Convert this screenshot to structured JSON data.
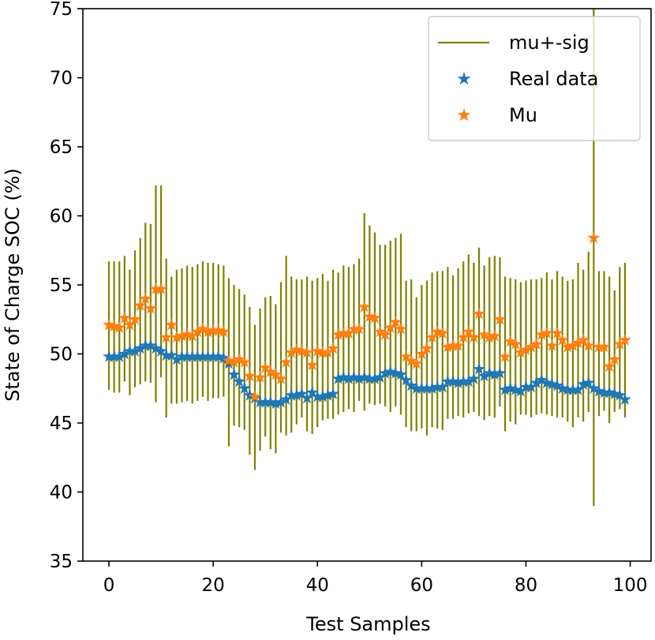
{
  "chart_data": {
    "type": "scatter",
    "title": "",
    "xlabel": "Test Samples",
    "ylabel": "State of Charge SOC (%)",
    "xlim": [
      -5,
      104
    ],
    "ylim": [
      35,
      75
    ],
    "xticks": [
      0,
      20,
      40,
      60,
      80,
      100
    ],
    "yticks": [
      35,
      40,
      45,
      50,
      55,
      60,
      65,
      70,
      75
    ],
    "grid": false,
    "legend_position": "top-right",
    "x": [
      0,
      1,
      2,
      3,
      4,
      5,
      6,
      7,
      8,
      9,
      10,
      11,
      12,
      13,
      14,
      15,
      16,
      17,
      18,
      19,
      20,
      21,
      22,
      23,
      24,
      25,
      26,
      27,
      28,
      29,
      30,
      31,
      32,
      33,
      34,
      35,
      36,
      37,
      38,
      39,
      40,
      41,
      42,
      43,
      44,
      45,
      46,
      47,
      48,
      49,
      50,
      51,
      52,
      53,
      54,
      55,
      56,
      57,
      58,
      59,
      60,
      61,
      62,
      63,
      64,
      65,
      66,
      67,
      68,
      69,
      70,
      71,
      72,
      73,
      74,
      75,
      76,
      77,
      78,
      79,
      80,
      81,
      82,
      83,
      84,
      85,
      86,
      87,
      88,
      89,
      90,
      91,
      92,
      93,
      94,
      95,
      96,
      97,
      98,
      99
    ],
    "series": [
      {
        "name": "mu+-sig",
        "kind": "errorbar",
        "color": "#808000",
        "low": [
          47.4,
          47.2,
          47.2,
          48.0,
          47.0,
          47.6,
          47.8,
          48.0,
          47.9,
          46.5,
          48.3,
          45.4,
          46.4,
          46.4,
          46.5,
          46.6,
          46.4,
          46.6,
          46.9,
          46.6,
          46.8,
          46.8,
          46.9,
          43.3,
          44.8,
          44.7,
          44.5,
          42.7,
          41.6,
          43.0,
          44.0,
          43.1,
          42.8,
          44.3,
          44.1,
          44.3,
          44.9,
          45.4,
          44.4,
          44.2,
          44.7,
          45.2,
          45.3,
          45.3,
          45.6,
          45.8,
          46.0,
          45.8,
          46.6,
          45.9,
          46.4,
          46.3,
          46.4,
          46.2,
          45.8,
          46.2,
          45.6,
          44.7,
          44.4,
          44.4,
          44.6,
          44.1,
          44.7,
          44.6,
          44.5,
          45.3,
          45.3,
          45.5,
          45.4,
          45.7,
          45.8,
          45.5,
          45.2,
          45.5,
          45.4,
          46.2,
          44.4,
          45.1,
          44.9,
          45.6,
          45.6,
          45.4,
          45.6,
          45.7,
          45.6,
          45.5,
          45.4,
          45.4,
          45.1,
          44.7,
          45.4,
          45.1,
          45.8,
          39.0,
          45.5,
          45.9,
          45.0,
          45.8,
          46.0,
          45.4
        ],
        "high": [
          56.7,
          56.7,
          56.7,
          57.1,
          56.1,
          57.5,
          58.4,
          59.5,
          59.4,
          62.2,
          62.2,
          56.9,
          55.6,
          56.1,
          56.2,
          56.4,
          56.3,
          56.5,
          56.7,
          56.6,
          56.6,
          56.5,
          56.4,
          55.5,
          55.0,
          54.7,
          54.3,
          53.4,
          52.1,
          53.3,
          54.1,
          54.2,
          53.6,
          55.2,
          57.1,
          55.6,
          55.4,
          55.4,
          55.6,
          55.3,
          55.5,
          55.8,
          55.3,
          56.1,
          55.9,
          56.4,
          56.3,
          56.5,
          56.9,
          60.2,
          59.3,
          58.8,
          57.9,
          57.9,
          58.2,
          58.4,
          58.7,
          55.3,
          55.4,
          54.1,
          55.0,
          55.3,
          55.9,
          56.0,
          56.0,
          56.3,
          55.7,
          56.2,
          56.7,
          57.2,
          56.6,
          57.7,
          56.4,
          57.0,
          57.1,
          57.0,
          55.6,
          55.5,
          55.4,
          55.2,
          55.3,
          55.4,
          55.4,
          55.5,
          55.9,
          55.4,
          56.0,
          55.6,
          55.3,
          55.4,
          56.6,
          56.1,
          57.4,
          75.0,
          56.0,
          56.0,
          55.6,
          54.6,
          56.3,
          56.6
        ]
      },
      {
        "name": "Real data",
        "kind": "marker",
        "color": "#1f77b4",
        "values": [
          49.8,
          49.8,
          49.8,
          50.0,
          50.2,
          50.2,
          50.4,
          50.6,
          50.6,
          50.4,
          50.2,
          49.9,
          49.9,
          49.6,
          49.8,
          49.8,
          49.8,
          49.8,
          49.8,
          49.8,
          49.8,
          49.8,
          49.7,
          49.3,
          48.5,
          48.0,
          47.5,
          47.0,
          46.8,
          46.5,
          46.5,
          46.5,
          46.4,
          46.5,
          46.7,
          47.0,
          47.0,
          47.1,
          46.8,
          47.2,
          46.9,
          46.9,
          47.0,
          47.1,
          48.2,
          48.3,
          48.2,
          48.3,
          48.2,
          48.3,
          48.2,
          48.2,
          48.3,
          48.6,
          48.7,
          48.6,
          48.5,
          48.1,
          47.7,
          47.5,
          47.5,
          47.5,
          47.5,
          47.6,
          47.6,
          48.0,
          48.0,
          47.9,
          48.0,
          48.0,
          48.2,
          48.9,
          48.4,
          48.6,
          48.5,
          48.6,
          47.4,
          47.5,
          47.4,
          47.3,
          47.6,
          47.6,
          47.9,
          48.1,
          47.9,
          47.8,
          47.7,
          47.5,
          47.4,
          47.4,
          47.4,
          47.8,
          47.9,
          47.5,
          47.3,
          47.2,
          47.2,
          47.1,
          47.0,
          46.7
        ]
      },
      {
        "name": "Mu",
        "kind": "marker",
        "color": "#ff7f0e",
        "values": [
          52.1,
          52.0,
          51.9,
          52.6,
          52.1,
          52.5,
          53.5,
          54.0,
          53.3,
          54.7,
          54.7,
          51.2,
          52.1,
          51.2,
          51.3,
          51.4,
          51.3,
          51.6,
          51.8,
          51.6,
          51.7,
          51.7,
          51.6,
          49.5,
          49.4,
          49.6,
          49.4,
          48.4,
          46.9,
          48.3,
          49.0,
          48.7,
          48.5,
          48.2,
          49.4,
          50.1,
          50.3,
          50.2,
          50.1,
          49.2,
          50.2,
          50.1,
          50.1,
          50.4,
          51.4,
          51.5,
          51.5,
          51.8,
          51.8,
          53.4,
          52.7,
          52.6,
          51.6,
          51.4,
          51.9,
          52.3,
          51.8,
          49.8,
          49.5,
          49.3,
          50.0,
          50.4,
          51.2,
          51.6,
          51.5,
          50.5,
          50.6,
          50.6,
          51.2,
          51.6,
          51.2,
          52.9,
          51.4,
          51.2,
          51.3,
          52.5,
          49.8,
          50.9,
          50.7,
          50.1,
          50.3,
          50.5,
          50.7,
          51.4,
          51.5,
          50.6,
          51.5,
          51.0,
          50.5,
          50.6,
          50.8,
          51.0,
          50.6,
          58.4,
          50.5,
          50.5,
          49.1,
          49.6,
          50.7,
          51.0
        ]
      }
    ]
  }
}
